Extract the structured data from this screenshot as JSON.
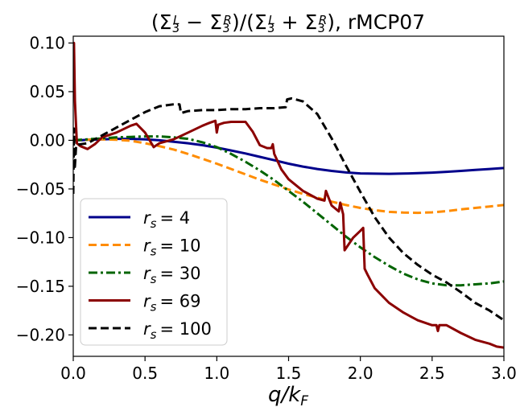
{
  "chart_data": {
    "type": "line",
    "title": "(Σ₃ᴸ − Σ₃ᴿ)/(Σ₃ᴸ + Σ₃ᴿ), rMCP07",
    "xlabel": "q/k_F",
    "ylabel": "",
    "xlim": [
      0.0,
      3.0
    ],
    "ylim": [
      -0.222,
      0.107
    ],
    "xticks": [
      0.0,
      0.5,
      1.0,
      1.5,
      2.0,
      2.5,
      3.0
    ],
    "xtick_labels": [
      "0.0",
      "0.5",
      "1.0",
      "1.5",
      "2.0",
      "2.5",
      "3.0"
    ],
    "yticks": [
      0.1,
      0.05,
      0.0,
      -0.05,
      -0.1,
      -0.15,
      -0.2
    ],
    "ytick_labels": [
      "0.10",
      "0.05",
      "0.00",
      "−0.05",
      "−0.10",
      "−0.15",
      "−0.20"
    ],
    "grid": false,
    "legend_position": "lower-left",
    "series": [
      {
        "name": "r_s = 4",
        "color": "#00008b",
        "dash": "solid",
        "x": [
          0.0,
          0.05,
          0.1,
          0.2,
          0.3,
          0.4,
          0.5,
          0.6,
          0.7,
          0.8,
          0.9,
          1.0,
          1.1,
          1.2,
          1.3,
          1.4,
          1.5,
          1.6,
          1.7,
          1.8,
          1.9,
          2.0,
          2.1,
          2.2,
          2.3,
          2.4,
          2.5,
          2.6,
          2.7,
          2.8,
          2.9,
          3.0
        ],
        "y": [
          0.0,
          0.0,
          0.0005,
          0.001,
          0.0015,
          0.0015,
          0.001,
          0.0,
          -0.0015,
          -0.003,
          -0.005,
          -0.0075,
          -0.0105,
          -0.0135,
          -0.017,
          -0.0205,
          -0.024,
          -0.027,
          -0.0295,
          -0.0315,
          -0.033,
          -0.034,
          -0.0343,
          -0.0344,
          -0.0342,
          -0.0338,
          -0.0332,
          -0.0324,
          -0.0315,
          -0.0305,
          -0.0295,
          -0.0285
        ]
      },
      {
        "name": "r_s = 10",
        "color": "#ff8c00",
        "dash": "dashed",
        "x": [
          0.0,
          0.1,
          0.2,
          0.3,
          0.4,
          0.5,
          0.6,
          0.7,
          0.8,
          0.9,
          1.0,
          1.1,
          1.2,
          1.3,
          1.4,
          1.5,
          1.6,
          1.7,
          1.8,
          1.9,
          2.0,
          2.1,
          2.2,
          2.3,
          2.4,
          2.5,
          2.6,
          2.7,
          2.8,
          2.9,
          3.0
        ],
        "y": [
          0.0,
          0.0005,
          0.001,
          0.0005,
          -0.0005,
          -0.003,
          -0.006,
          -0.0095,
          -0.014,
          -0.019,
          -0.024,
          -0.0295,
          -0.035,
          -0.0405,
          -0.0455,
          -0.0505,
          -0.055,
          -0.059,
          -0.063,
          -0.0665,
          -0.0695,
          -0.0718,
          -0.0735,
          -0.0743,
          -0.0745,
          -0.074,
          -0.0728,
          -0.071,
          -0.0695,
          -0.068,
          -0.0665
        ]
      },
      {
        "name": "r_s = 30",
        "color": "#006400",
        "dash": "dashdot",
        "x": [
          0.0,
          0.1,
          0.2,
          0.3,
          0.4,
          0.5,
          0.6,
          0.7,
          0.8,
          0.9,
          1.0,
          1.1,
          1.2,
          1.3,
          1.4,
          1.5,
          1.6,
          1.7,
          1.8,
          1.9,
          2.0,
          2.1,
          2.2,
          2.3,
          2.4,
          2.5,
          2.6,
          2.7,
          2.8,
          2.9,
          3.0
        ],
        "y": [
          0.0,
          0.001,
          0.002,
          0.003,
          0.0035,
          0.004,
          0.004,
          0.003,
          0.0015,
          -0.002,
          -0.007,
          -0.014,
          -0.022,
          -0.031,
          -0.041,
          -0.052,
          -0.063,
          -0.075,
          -0.087,
          -0.099,
          -0.11,
          -0.12,
          -0.129,
          -0.137,
          -0.143,
          -0.147,
          -0.149,
          -0.149,
          -0.148,
          -0.147,
          -0.145
        ]
      },
      {
        "name": "r_s = 69",
        "color": "#8b0000",
        "dash": "solid",
        "x": [
          0.0,
          0.005,
          0.012,
          0.025,
          0.05,
          0.1,
          0.15,
          0.2,
          0.3,
          0.4,
          0.44,
          0.5,
          0.56,
          0.6,
          0.7,
          0.8,
          0.9,
          0.95,
          0.99,
          1.0,
          1.01,
          1.05,
          1.1,
          1.15,
          1.2,
          1.25,
          1.3,
          1.35,
          1.38,
          1.39,
          1.4,
          1.45,
          1.5,
          1.6,
          1.7,
          1.75,
          1.76,
          1.8,
          1.85,
          1.86,
          1.88,
          1.89,
          1.95,
          2.0,
          2.02,
          2.03,
          2.05,
          2.1,
          2.2,
          2.3,
          2.4,
          2.5,
          2.53,
          2.54,
          2.55,
          2.6,
          2.7,
          2.8,
          2.9,
          2.95,
          3.0
        ],
        "y": [
          0.05,
          0.1,
          0.04,
          -0.003,
          -0.006,
          -0.009,
          -0.004,
          0.003,
          0.008,
          0.015,
          0.017,
          0.008,
          -0.007,
          -0.003,
          0.001,
          0.008,
          0.015,
          0.018,
          0.02,
          0.008,
          0.016,
          0.018,
          0.019,
          0.019,
          0.019,
          0.009,
          -0.005,
          -0.008,
          -0.008,
          -0.004,
          -0.014,
          -0.03,
          -0.04,
          -0.052,
          -0.06,
          -0.062,
          -0.052,
          -0.067,
          -0.073,
          -0.064,
          -0.076,
          -0.113,
          -0.1,
          -0.093,
          -0.09,
          -0.132,
          -0.138,
          -0.152,
          -0.167,
          -0.177,
          -0.185,
          -0.19,
          -0.19,
          -0.196,
          -0.19,
          -0.19,
          -0.198,
          -0.205,
          -0.209,
          -0.212,
          -0.213
        ]
      },
      {
        "name": "r_s = 100",
        "color": "#000000",
        "dash": "dashed",
        "x": [
          0.0,
          0.005,
          0.01,
          0.02,
          0.05,
          0.1,
          0.2,
          0.3,
          0.4,
          0.5,
          0.6,
          0.7,
          0.74,
          0.75,
          0.8,
          0.9,
          1.0,
          1.1,
          1.2,
          1.3,
          1.4,
          1.48,
          1.49,
          1.52,
          1.55,
          1.6,
          1.7,
          1.8,
          1.9,
          2.0,
          2.1,
          2.2,
          2.3,
          2.4,
          2.5,
          2.6,
          2.7,
          2.8,
          2.9,
          3.0
        ],
        "y": [
          -0.055,
          0.012,
          -0.03,
          -0.005,
          -0.004,
          -0.003,
          0.005,
          0.013,
          0.021,
          0.029,
          0.035,
          0.037,
          0.037,
          0.028,
          0.03,
          0.031,
          0.031,
          0.032,
          0.032,
          0.033,
          0.033,
          0.034,
          0.042,
          0.043,
          0.042,
          0.04,
          0.027,
          0.002,
          -0.026,
          -0.053,
          -0.079,
          -0.1,
          -0.116,
          -0.128,
          -0.138,
          -0.146,
          -0.156,
          -0.167,
          -0.175,
          -0.185
        ]
      }
    ]
  }
}
